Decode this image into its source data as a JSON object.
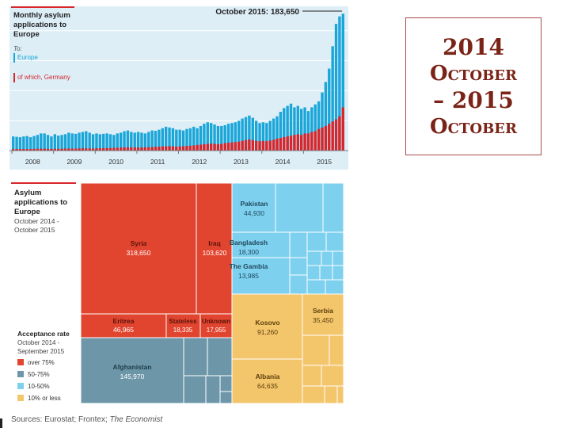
{
  "chart_data": [
    {
      "type": "bar",
      "title": "Monthly asylum applications to Europe",
      "legend_prefix": "To:",
      "legend": [
        {
          "name": "Europe",
          "color": "#1aa6d8"
        },
        {
          "name": "of which, Germany",
          "color": "#d7262c"
        }
      ],
      "callout": "October 2015: 183,650",
      "x_tick_labels": [
        "2008",
        "2009",
        "2010",
        "2011",
        "2012",
        "2013",
        "2014",
        "2015"
      ],
      "ylim": [
        0,
        185000
      ],
      "start": "2008-01",
      "series": [
        {
          "name": "Europe",
          "values": [
            19000,
            18500,
            18000,
            19000,
            19500,
            18000,
            19500,
            21000,
            23000,
            23000,
            21000,
            19000,
            22000,
            20000,
            21000,
            22000,
            24000,
            23000,
            22500,
            24000,
            25000,
            26000,
            24000,
            22000,
            23000,
            22000,
            22500,
            23000,
            22000,
            21000,
            23000,
            24000,
            26000,
            27000,
            25000,
            24000,
            25000,
            24000,
            23000,
            25000,
            27000,
            26500,
            28000,
            30000,
            32000,
            31000,
            30000,
            28000,
            28000,
            27000,
            29000,
            30000,
            32000,
            30000,
            33000,
            36000,
            38000,
            37000,
            35000,
            33000,
            33000,
            34000,
            36000,
            37000,
            38000,
            40000,
            43000,
            45000,
            47000,
            44000,
            40000,
            37000,
            38000,
            37000,
            40000,
            43000,
            46000,
            52000,
            57000,
            60000,
            63000,
            58000,
            60000,
            56000,
            58000,
            53000,
            58000,
            62000,
            66000,
            78000,
            92000,
            110000,
            140000,
            170000,
            180000,
            183650
          ]
        },
        {
          "name": "of which, Germany",
          "values": [
            2000,
            2000,
            2000,
            2100,
            2000,
            2100,
            2200,
            2400,
            2500,
            2600,
            2300,
            2200,
            2400,
            2300,
            2500,
            2600,
            2800,
            2600,
            2700,
            2900,
            3000,
            3100,
            2900,
            2700,
            3000,
            3100,
            3200,
            3300,
            3500,
            3600,
            3800,
            4000,
            4200,
            4400,
            4300,
            4100,
            4200,
            4100,
            4300,
            4600,
            4800,
            5000,
            5300,
            5600,
            5800,
            6000,
            5600,
            5300,
            5600,
            5800,
            6100,
            6500,
            7000,
            7500,
            8000,
            8500,
            9000,
            9500,
            9000,
            8500,
            9000,
            10000,
            10500,
            11000,
            11500,
            12000,
            13000,
            14000,
            15000,
            14000,
            13000,
            12500,
            13000,
            12500,
            13500,
            14500,
            16000,
            17000,
            18000,
            19000,
            20000,
            21000,
            22000,
            21000,
            23000,
            23000,
            25000,
            26000,
            29000,
            31000,
            33000,
            36000,
            39000,
            42000,
            46000,
            58000
          ]
        }
      ]
    },
    {
      "type": "treemap",
      "title": "Asylum applications to Europe",
      "subtitle": "October 2014 - October 2015",
      "legend_title": "Acceptance rate",
      "legend_subtitle": "October 2014 - September 2015",
      "legend": [
        {
          "name": "over 75%",
          "color": "#e2452f"
        },
        {
          "name": "50-75%",
          "color": "#6d97a8"
        },
        {
          "name": "10-50%",
          "color": "#7ed0ef"
        },
        {
          "name": "10% or less",
          "color": "#f4c66c"
        }
      ],
      "labelled_cells": [
        {
          "name": "Syria",
          "value": 318650,
          "value_label": "318,650",
          "rate": "over 75%"
        },
        {
          "name": "Iraq",
          "value": 103620,
          "value_label": "103,620",
          "rate": "over 75%"
        },
        {
          "name": "Eritrea",
          "value": 46965,
          "value_label": "46,965",
          "rate": "over 75%"
        },
        {
          "name": "Stateless",
          "value": 18335,
          "value_label": "18,335",
          "rate": "over 75%"
        },
        {
          "name": "Unknown",
          "value": 17955,
          "value_label": "17,955",
          "rate": "over 75%"
        },
        {
          "name": "Afghanistan",
          "value": 145970,
          "value_label": "145,970",
          "rate": "50-75%"
        },
        {
          "name": "Pakistan",
          "value": 44930,
          "value_label": "44,930",
          "rate": "10-50%"
        },
        {
          "name": "Bangladesh",
          "value": 18300,
          "value_label": "18,300",
          "rate": "10-50%"
        },
        {
          "name": "The Gambia",
          "value": 13985,
          "value_label": "13,985",
          "rate": "10-50%"
        },
        {
          "name": "Kosovo",
          "value": 91260,
          "value_label": "91,260",
          "rate": "10% or less"
        },
        {
          "name": "Serbia",
          "value": 35450,
          "value_label": "35,450",
          "rate": "10% or less"
        },
        {
          "name": "Albania",
          "value": 64635,
          "value_label": "64,635",
          "rate": "10% or less"
        }
      ]
    }
  ],
  "source": {
    "prefix": "Sources: Eurostat; Frontex; ",
    "publication": "The Economist"
  },
  "title_box": {
    "line1": "2014",
    "line2": "October",
    "line3": "– 2015",
    "line4": "October"
  }
}
